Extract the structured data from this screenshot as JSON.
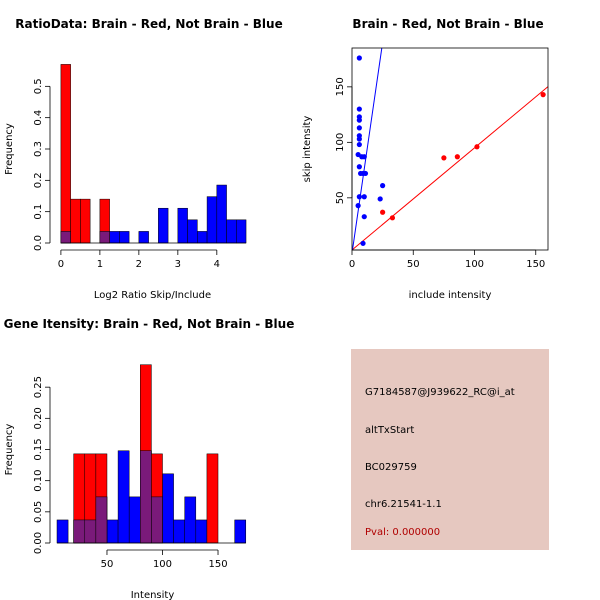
{
  "colors": {
    "brain": "#ff0000",
    "not_brain": "#0000ff",
    "overlap": "#7a1a7a",
    "panel_bg": "#e6c8c0",
    "pval": "#b00000"
  },
  "chart_data": [
    {
      "id": "ratio_hist",
      "type": "bar",
      "title": "RatioData: Brain - Red, Not Brain - Blue",
      "xlabel": "Log2 Ratio Skip/Include",
      "ylabel": "Frequency",
      "xlim": [
        -0.1,
        4.8
      ],
      "ylim": [
        0,
        0.6
      ],
      "xticks": [
        0,
        1,
        2,
        3,
        4
      ],
      "yticks": [
        0.0,
        0.1,
        0.2,
        0.3,
        0.4,
        0.5
      ],
      "bin_width": 0.25,
      "series": [
        {
          "name": "Brain",
          "color": "red",
          "bins": [
            {
              "x0": 0,
              "y": 0.57
            },
            {
              "x0": 0.25,
              "y": 0.14
            },
            {
              "x0": 0.5,
              "y": 0.14
            },
            {
              "x0": 1.0,
              "y": 0.14
            }
          ]
        },
        {
          "name": "Not Brain",
          "color": "blue",
          "bins": [
            {
              "x0": 0,
              "y": 0.037
            },
            {
              "x0": 1.0,
              "y": 0.037
            },
            {
              "x0": 1.25,
              "y": 0.037
            },
            {
              "x0": 1.5,
              "y": 0.037
            },
            {
              "x0": 2.0,
              "y": 0.037
            },
            {
              "x0": 2.5,
              "y": 0.111
            },
            {
              "x0": 3.0,
              "y": 0.111
            },
            {
              "x0": 3.25,
              "y": 0.074
            },
            {
              "x0": 3.5,
              "y": 0.037
            },
            {
              "x0": 3.75,
              "y": 0.148
            },
            {
              "x0": 4.0,
              "y": 0.185
            },
            {
              "x0": 4.25,
              "y": 0.074
            },
            {
              "x0": 4.5,
              "y": 0.074
            }
          ]
        }
      ]
    },
    {
      "id": "scatter",
      "type": "scatter",
      "title": "Brain - Red, Not Brain - Blue",
      "xlabel": "include intensity",
      "ylabel": "skip intensity",
      "xlim": [
        0,
        160
      ],
      "ylim": [
        3,
        185
      ],
      "xticks": [
        0,
        50,
        100,
        150
      ],
      "yticks": [
        50,
        100,
        150
      ],
      "series": [
        {
          "name": "Brain",
          "color": "red",
          "points": [
            [
              25,
              37
            ],
            [
              33,
              32
            ],
            [
              75,
              86
            ],
            [
              86,
              87
            ],
            [
              102,
              96
            ],
            [
              156,
              143
            ]
          ],
          "fit": {
            "slope": 0.92,
            "intercept": 3
          }
        },
        {
          "name": "Not Brain",
          "color": "blue",
          "points": [
            [
              6,
              176
            ],
            [
              6,
              130
            ],
            [
              6,
              123
            ],
            [
              6,
              120
            ],
            [
              6,
              113
            ],
            [
              6,
              106
            ],
            [
              6,
              103
            ],
            [
              6,
              98
            ],
            [
              5,
              89
            ],
            [
              8,
              87
            ],
            [
              6,
              78
            ],
            [
              10,
              87
            ],
            [
              7,
              72
            ],
            [
              9,
              72
            ],
            [
              11,
              72
            ],
            [
              25,
              61
            ],
            [
              6,
              51
            ],
            [
              10,
              51
            ],
            [
              23,
              49
            ],
            [
              5,
              43
            ],
            [
              10,
              33
            ],
            [
              9,
              9
            ]
          ],
          "fit": {
            "slope": 7.6,
            "intercept": 0
          }
        }
      ]
    },
    {
      "id": "intensity_hist",
      "type": "bar",
      "title": "Gene Itensity: Brain - Red, Not Brain - Blue",
      "xlabel": "Intensity",
      "ylabel": "Frequency",
      "xlim": [
        5,
        177
      ],
      "ylim": [
        0,
        0.3
      ],
      "xticks": [
        50,
        100,
        150
      ],
      "yticks": [
        0.0,
        0.05,
        0.1,
        0.15,
        0.2,
        0.25
      ],
      "bin_width": 10,
      "series": [
        {
          "name": "Brain",
          "color": "red",
          "bins": [
            {
              "x0": 20,
              "y": 0.143
            },
            {
              "x0": 30,
              "y": 0.143
            },
            {
              "x0": 40,
              "y": 0.143
            },
            {
              "x0": 80,
              "y": 0.286
            },
            {
              "x0": 90,
              "y": 0.143
            },
            {
              "x0": 140,
              "y": 0.143
            }
          ]
        },
        {
          "name": "Not Brain",
          "color": "blue",
          "bins": [
            {
              "x0": 5,
              "y": 0.037
            },
            {
              "x0": 20,
              "y": 0.037
            },
            {
              "x0": 30,
              "y": 0.037
            },
            {
              "x0": 40,
              "y": 0.074
            },
            {
              "x0": 50,
              "y": 0.037
            },
            {
              "x0": 60,
              "y": 0.148
            },
            {
              "x0": 70,
              "y": 0.074
            },
            {
              "x0": 80,
              "y": 0.148
            },
            {
              "x0": 90,
              "y": 0.074
            },
            {
              "x0": 100,
              "y": 0.111
            },
            {
              "x0": 110,
              "y": 0.037
            },
            {
              "x0": 120,
              "y": 0.074
            },
            {
              "x0": 130,
              "y": 0.037
            },
            {
              "x0": 165,
              "y": 0.037
            }
          ]
        }
      ]
    }
  ],
  "info": {
    "probe_id": "G7184587@J939622_RC@i_at",
    "event_type": "altTxStart",
    "accession": "BC029759",
    "location": "chr6.21541-1.1",
    "pval": "Pval: 0.000000"
  }
}
